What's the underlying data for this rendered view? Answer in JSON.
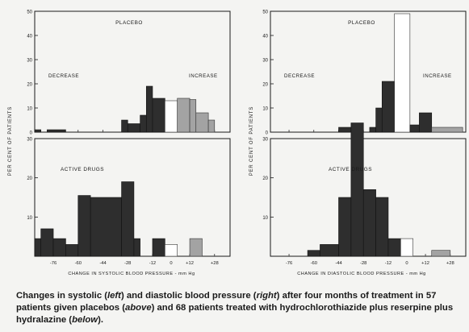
{
  "ylabel": "PER CENT OF PATIENTS",
  "xlabel_left": "CHANGE IN SYSTOLIC BLOOD PRESSURE - mm Hg",
  "xlabel_right": "CHANGE IN DIASTOLIC BLOOD PRESSURE - mm Hg",
  "caption": {
    "p1": "Changes in systolic (",
    "left": "left",
    "p2": ") and diastolic blood pressure (",
    "right": "right",
    "p3": ") after four months of treatment in 57 patients given placebos (",
    "above": "above",
    "p4": ") and 68 patients treated with hydrochlorothiazide plus reserpine plus hydralazine (",
    "below": "below",
    "p5": ")."
  },
  "colors": {
    "decrease": "#2e2e2e",
    "increase": "#a3a3a3",
    "zero": "#ffffff",
    "ink": "#1a1a1a"
  },
  "chart_data": [
    {
      "id": "systolic-placebo",
      "type": "bar",
      "title": "PLACEBO",
      "left_label": "DECREASE",
      "right_label": "INCREASE",
      "ylim": [
        0,
        50
      ],
      "yticks": [
        0,
        10,
        20,
        30,
        40,
        50
      ],
      "xlim": [
        -88,
        38
      ],
      "xticks": [
        -76,
        -60,
        -44,
        -28,
        -12,
        0,
        12,
        28
      ],
      "bars": [
        {
          "x0": -88,
          "x1": -84,
          "y": 1,
          "kind": "decrease"
        },
        {
          "x0": -80,
          "x1": -68,
          "y": 1,
          "kind": "decrease"
        },
        {
          "x0": -32,
          "x1": -28,
          "y": 5,
          "kind": "decrease"
        },
        {
          "x0": -28,
          "x1": -20,
          "y": 3.5,
          "kind": "decrease"
        },
        {
          "x0": -20,
          "x1": -16,
          "y": 7,
          "kind": "decrease"
        },
        {
          "x0": -16,
          "x1": -12,
          "y": 19,
          "kind": "decrease"
        },
        {
          "x0": -12,
          "x1": -4,
          "y": 14,
          "kind": "decrease"
        },
        {
          "x0": -4,
          "x1": 4,
          "y": 13,
          "kind": "zero"
        },
        {
          "x0": 4,
          "x1": 12,
          "y": 14,
          "kind": "increase"
        },
        {
          "x0": 12,
          "x1": 16,
          "y": 13.5,
          "kind": "increase"
        },
        {
          "x0": 16,
          "x1": 24,
          "y": 8,
          "kind": "increase"
        },
        {
          "x0": 24,
          "x1": 28,
          "y": 5,
          "kind": "increase"
        }
      ]
    },
    {
      "id": "diastolic-placebo",
      "type": "bar",
      "title": "PLACEBO",
      "left_label": "DECREASE",
      "right_label": "INCREASE",
      "ylim": [
        0,
        50
      ],
      "yticks": [
        0,
        10,
        20,
        30,
        40,
        50
      ],
      "xlim": [
        -88,
        38
      ],
      "xticks": [
        -76,
        -60,
        -44,
        -28,
        -12,
        0,
        12,
        28
      ],
      "bars": [
        {
          "x0": -44,
          "x1": -36,
          "y": 2,
          "kind": "decrease"
        },
        {
          "x0": -24,
          "x1": -20,
          "y": 2,
          "kind": "decrease"
        },
        {
          "x0": -20,
          "x1": -16,
          "y": 10,
          "kind": "decrease"
        },
        {
          "x0": -16,
          "x1": -8,
          "y": 21,
          "kind": "decrease"
        },
        {
          "x0": -8,
          "x1": 2,
          "y": 49,
          "kind": "zero"
        },
        {
          "x0": 2,
          "x1": 8,
          "y": 3,
          "kind": "decrease"
        },
        {
          "x0": 8,
          "x1": 16,
          "y": 8,
          "kind": "decrease"
        },
        {
          "x0": 16,
          "x1": 36,
          "y": 2,
          "kind": "increase"
        }
      ]
    },
    {
      "id": "systolic-active",
      "type": "bar",
      "title": "ACTIVE DRUGS",
      "ylim": [
        0,
        30
      ],
      "yticks": [
        0,
        10,
        20,
        30
      ],
      "xlim": [
        -88,
        38
      ],
      "xticks": [
        -76,
        -60,
        -44,
        -28,
        -12,
        0,
        12,
        28
      ],
      "bars": [
        {
          "x0": -88,
          "x1": -84,
          "y": 4.5,
          "kind": "decrease"
        },
        {
          "x0": -84,
          "x1": -76,
          "y": 7,
          "kind": "decrease"
        },
        {
          "x0": -76,
          "x1": -68,
          "y": 4.5,
          "kind": "decrease"
        },
        {
          "x0": -68,
          "x1": -60,
          "y": 3,
          "kind": "decrease"
        },
        {
          "x0": -60,
          "x1": -52,
          "y": 15.5,
          "kind": "decrease"
        },
        {
          "x0": -52,
          "x1": -32,
          "y": 15,
          "kind": "decrease"
        },
        {
          "x0": -32,
          "x1": -24,
          "y": 19,
          "kind": "decrease"
        },
        {
          "x0": -24,
          "x1": -20,
          "y": 4.5,
          "kind": "decrease"
        },
        {
          "x0": -12,
          "x1": -4,
          "y": 4.5,
          "kind": "decrease"
        },
        {
          "x0": -4,
          "x1": 4,
          "y": 3,
          "kind": "zero"
        },
        {
          "x0": 12,
          "x1": 20,
          "y": 4.5,
          "kind": "increase"
        }
      ]
    },
    {
      "id": "diastolic-active",
      "type": "bar",
      "title": "ACTIVE DRUGS",
      "ylim": [
        0,
        30
      ],
      "yticks": [
        0,
        10,
        20,
        30
      ],
      "xlim": [
        -88,
        38
      ],
      "xticks": [
        -76,
        -60,
        -44,
        -28,
        -12,
        0,
        12,
        28
      ],
      "bars": [
        {
          "x0": -64,
          "x1": -56,
          "y": 1.5,
          "kind": "decrease"
        },
        {
          "x0": -56,
          "x1": -44,
          "y": 3,
          "kind": "decrease"
        },
        {
          "x0": -44,
          "x1": -36,
          "y": 15,
          "kind": "decrease"
        },
        {
          "x0": -36,
          "x1": -28,
          "y": 34,
          "kind": "decrease"
        },
        {
          "x0": -28,
          "x1": -20,
          "y": 17,
          "kind": "decrease"
        },
        {
          "x0": -20,
          "x1": -12,
          "y": 15,
          "kind": "decrease"
        },
        {
          "x0": -12,
          "x1": -4,
          "y": 4.5,
          "kind": "decrease"
        },
        {
          "x0": -4,
          "x1": 4,
          "y": 4.5,
          "kind": "zero"
        },
        {
          "x0": 16,
          "x1": 28,
          "y": 1.5,
          "kind": "increase"
        }
      ]
    }
  ]
}
